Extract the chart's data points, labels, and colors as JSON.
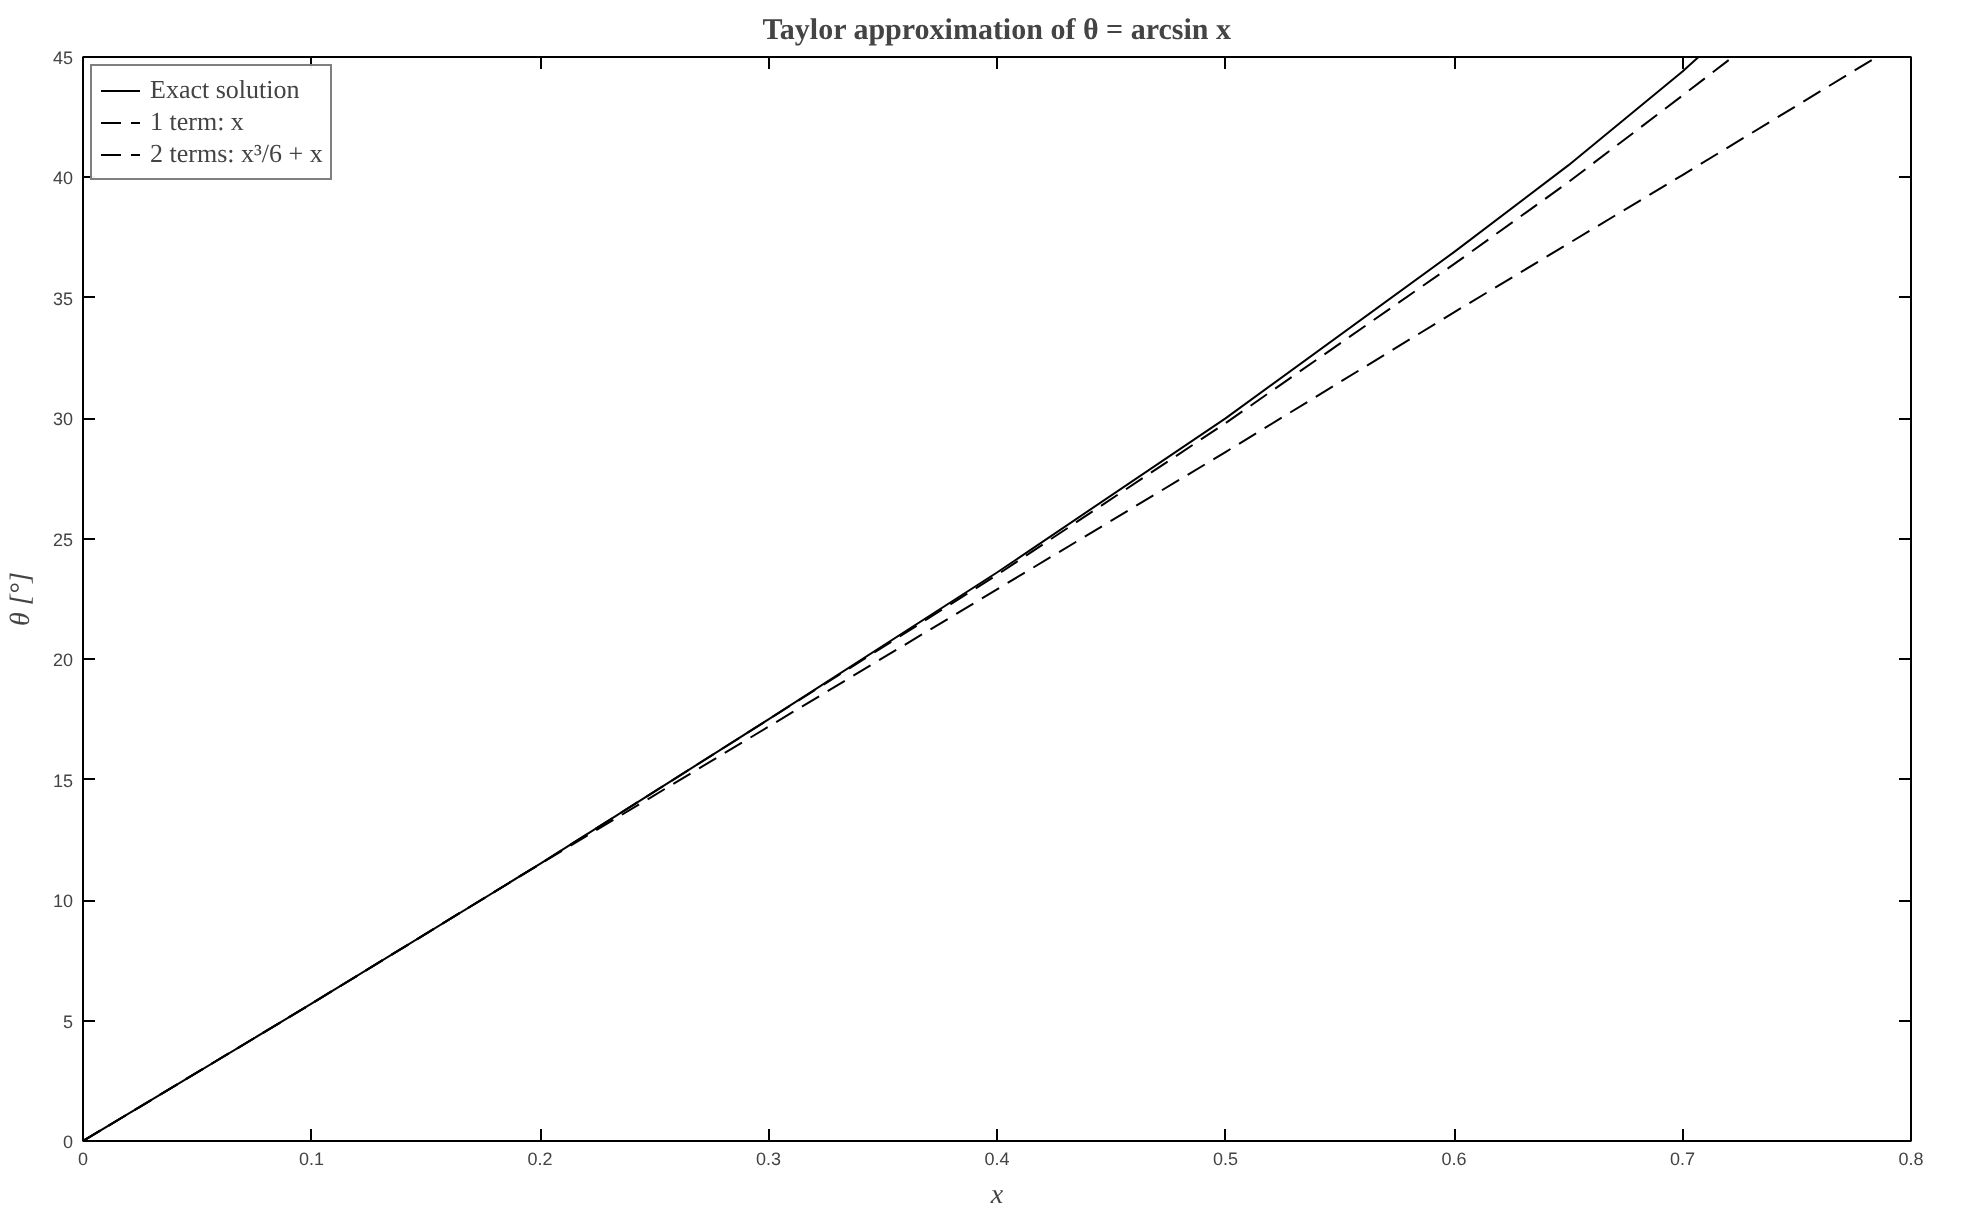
{
  "chart_data": {
    "type": "line",
    "title": "Taylor approximation of θ = arcsin x",
    "xlabel": "x",
    "ylabel": "θ [°]",
    "xlim": [
      0,
      0.8
    ],
    "ylim": [
      0,
      45
    ],
    "xticks": [
      0,
      0.1,
      0.2,
      0.3,
      0.4,
      0.5,
      0.6,
      0.7,
      0.8
    ],
    "yticks": [
      0,
      5,
      10,
      15,
      20,
      25,
      30,
      35,
      40,
      45
    ],
    "grid": false,
    "legend": "top left",
    "marker": "none",
    "series": [
      {
        "name": "Exact solution",
        "color": "#000000",
        "line_style": "solid",
        "x": [
          0,
          0.1,
          0.2,
          0.3,
          0.4,
          0.5,
          0.6,
          0.65,
          0.7,
          0.707
        ],
        "values": [
          0,
          5.7,
          11.5,
          17.5,
          23.6,
          30,
          36.9,
          40.5,
          44.4,
          45
        ]
      },
      {
        "name": "1 term: x",
        "color": "#000000",
        "line_style": "dashed",
        "x": [
          0,
          0.1,
          0.2,
          0.3,
          0.4,
          0.5,
          0.6,
          0.7,
          0.785
        ],
        "values": [
          0,
          5.7,
          11.5,
          17.2,
          22.9,
          28.6,
          34.4,
          40.1,
          45
        ]
      },
      {
        "name": "2 terms: x³/6 + x",
        "color": "#000000",
        "line_style": "dashed",
        "x": [
          0,
          0.1,
          0.2,
          0.3,
          0.4,
          0.5,
          0.6,
          0.65,
          0.7,
          0.722
        ],
        "values": [
          0,
          5.7,
          11.5,
          17.5,
          23.5,
          29.8,
          36.4,
          39.8,
          43.4,
          45
        ]
      }
    ]
  }
}
